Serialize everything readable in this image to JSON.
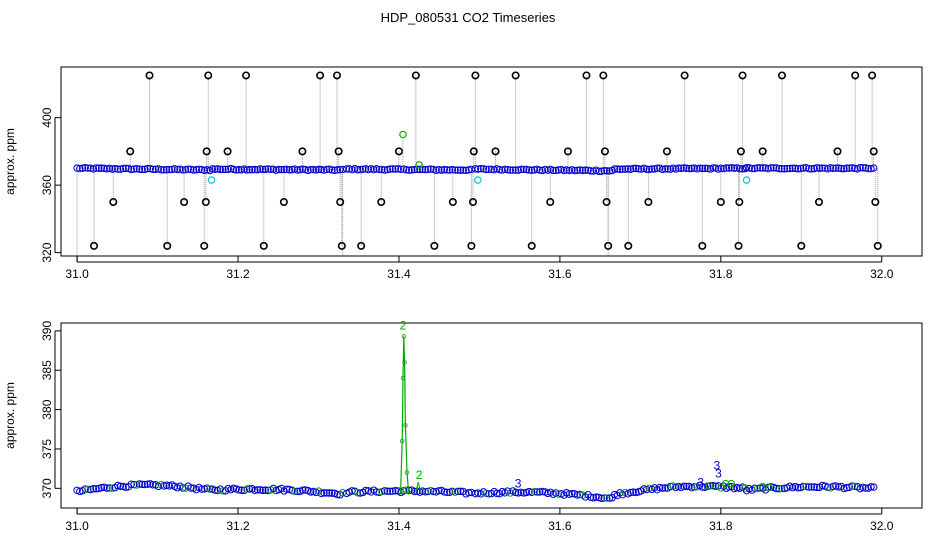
{
  "title": "HDP_080531  CO2 Timeseries",
  "colors": {
    "outlier": "#000000",
    "main": "#0000cc",
    "flag_green": "#00aa00",
    "flag_cyan": "#00ccdd",
    "connector": "#999999",
    "frame": "#000000"
  },
  "chart_data": [
    {
      "type": "scatter",
      "panel": "top",
      "title": "",
      "xlabel": "",
      "ylabel": "approx. ppm",
      "xlim": [
        30.98,
        32.05
      ],
      "ylim": [
        318,
        430
      ],
      "xticks": [
        31.0,
        31.2,
        31.4,
        31.6,
        31.8,
        32.0
      ],
      "yticks": [
        320,
        360,
        400
      ],
      "segments": [
        {
          "x": [
            31.0,
            31.165
          ],
          "y": [
            370,
            369
          ]
        },
        {
          "x": [
            31.168,
            31.33
          ],
          "y": [
            369.5,
            369
          ]
        },
        {
          "x": [
            31.335,
            31.49
          ],
          "y": [
            369.5,
            369
          ]
        },
        {
          "x": [
            31.495,
            31.665
          ],
          "y": [
            369.5,
            368.5
          ]
        },
        {
          "x": [
            31.668,
            31.83
          ],
          "y": [
            369.5,
            370
          ]
        },
        {
          "x": [
            31.832,
            31.99
          ],
          "y": [
            370,
            370
          ]
        }
      ],
      "outliers": [
        {
          "x": 31.021,
          "y": 324
        },
        {
          "x": 31.045,
          "y": 350
        },
        {
          "x": 31.066,
          "y": 380
        },
        {
          "x": 31.09,
          "y": 425
        },
        {
          "x": 31.112,
          "y": 324
        },
        {
          "x": 31.133,
          "y": 350
        },
        {
          "x": 31.158,
          "y": 324
        },
        {
          "x": 31.16,
          "y": 350
        },
        {
          "x": 31.161,
          "y": 380
        },
        {
          "x": 31.163,
          "y": 425
        },
        {
          "x": 31.187,
          "y": 380
        },
        {
          "x": 31.21,
          "y": 425
        },
        {
          "x": 31.232,
          "y": 324
        },
        {
          "x": 31.257,
          "y": 350
        },
        {
          "x": 31.28,
          "y": 380
        },
        {
          "x": 31.302,
          "y": 425
        },
        {
          "x": 31.323,
          "y": 425
        },
        {
          "x": 31.325,
          "y": 380
        },
        {
          "x": 31.327,
          "y": 350
        },
        {
          "x": 31.329,
          "y": 324
        },
        {
          "x": 31.353,
          "y": 324
        },
        {
          "x": 31.378,
          "y": 350
        },
        {
          "x": 31.4,
          "y": 380
        },
        {
          "x": 31.421,
          "y": 425
        },
        {
          "x": 31.444,
          "y": 324
        },
        {
          "x": 31.467,
          "y": 350
        },
        {
          "x": 31.49,
          "y": 324
        },
        {
          "x": 31.492,
          "y": 350
        },
        {
          "x": 31.493,
          "y": 380
        },
        {
          "x": 31.495,
          "y": 425
        },
        {
          "x": 31.52,
          "y": 380
        },
        {
          "x": 31.545,
          "y": 425
        },
        {
          "x": 31.565,
          "y": 324
        },
        {
          "x": 31.588,
          "y": 350
        },
        {
          "x": 31.61,
          "y": 380
        },
        {
          "x": 31.633,
          "y": 425
        },
        {
          "x": 31.654,
          "y": 425
        },
        {
          "x": 31.656,
          "y": 380
        },
        {
          "x": 31.658,
          "y": 350
        },
        {
          "x": 31.66,
          "y": 324
        },
        {
          "x": 31.685,
          "y": 324
        },
        {
          "x": 31.71,
          "y": 350
        },
        {
          "x": 31.733,
          "y": 380
        },
        {
          "x": 31.755,
          "y": 425
        },
        {
          "x": 31.777,
          "y": 324
        },
        {
          "x": 31.8,
          "y": 350
        },
        {
          "x": 31.822,
          "y": 324
        },
        {
          "x": 31.823,
          "y": 350
        },
        {
          "x": 31.825,
          "y": 380
        },
        {
          "x": 31.827,
          "y": 425
        },
        {
          "x": 31.852,
          "y": 380
        },
        {
          "x": 31.876,
          "y": 425
        },
        {
          "x": 31.9,
          "y": 324
        },
        {
          "x": 31.922,
          "y": 350
        },
        {
          "x": 31.945,
          "y": 380
        },
        {
          "x": 31.967,
          "y": 425
        },
        {
          "x": 31.988,
          "y": 425
        },
        {
          "x": 31.99,
          "y": 380
        },
        {
          "x": 31.992,
          "y": 350
        },
        {
          "x": 31.995,
          "y": 324
        }
      ],
      "green_points": [
        {
          "x": 31.405,
          "y": 390
        },
        {
          "x": 31.425,
          "y": 372
        }
      ],
      "cyan_points": [
        {
          "x": 31.167,
          "y": 363
        },
        {
          "x": 31.498,
          "y": 363
        },
        {
          "x": 31.832,
          "y": 363
        }
      ]
    },
    {
      "type": "scatter",
      "panel": "bottom",
      "title": "",
      "xlabel": "",
      "ylabel": "approx. ppm",
      "xlim": [
        30.98,
        32.05
      ],
      "ylim": [
        367.5,
        391
      ],
      "xticks": [
        31.0,
        31.2,
        31.4,
        31.6,
        31.8,
        32.0
      ],
      "yticks": [
        370,
        375,
        380,
        385,
        390
      ],
      "segments": [
        {
          "x": [
            31.0,
            31.165
          ],
          "y": [
            369.6,
            369.8
          ],
          "bump": 0.7
        },
        {
          "x": [
            31.168,
            31.33
          ],
          "y": [
            369.8,
            369.3
          ],
          "bump": 0.3
        },
        {
          "x": [
            31.335,
            31.49
          ],
          "y": [
            369.5,
            369.4
          ],
          "bump": 0.2
        },
        {
          "x": [
            31.495,
            31.665
          ],
          "y": [
            369.4,
            368.7
          ],
          "bump": 0.4
        },
        {
          "x": [
            31.668,
            31.83
          ],
          "y": [
            369.2,
            370.0
          ],
          "bump": 0.6
        },
        {
          "x": [
            31.832,
            31.99
          ],
          "y": [
            369.8,
            370.0
          ],
          "bump": 0.3
        }
      ],
      "spike": {
        "x": [
          31.402,
          31.404,
          31.405,
          31.406,
          31.407,
          31.408,
          31.41,
          31.412
        ],
        "y": [
          369.5,
          376,
          384,
          389.3,
          386,
          378,
          372,
          369.5
        ]
      },
      "annotations": [
        {
          "text": "2",
          "x": 31.405,
          "y": 390.2,
          "color": "green"
        },
        {
          "text": "2",
          "x": 31.425,
          "y": 371.2,
          "color": "green"
        },
        {
          "text": "3",
          "x": 31.548,
          "y": 370.1,
          "color": "blue"
        },
        {
          "text": "3",
          "x": 31.775,
          "y": 370.2,
          "color": "blue"
        },
        {
          "text": "3",
          "x": 31.795,
          "y": 372.4,
          "color": "blue"
        },
        {
          "text": "3",
          "x": 31.797,
          "y": 371.4,
          "color": "blue"
        }
      ],
      "green_circles": [
        {
          "x": 31.786,
          "y": 370.3
        },
        {
          "x": 31.806,
          "y": 370.6
        },
        {
          "x": 31.813,
          "y": 370.6
        },
        {
          "x": 31.852,
          "y": 370.2
        },
        {
          "x": 31.86,
          "y": 370.1
        }
      ]
    }
  ]
}
